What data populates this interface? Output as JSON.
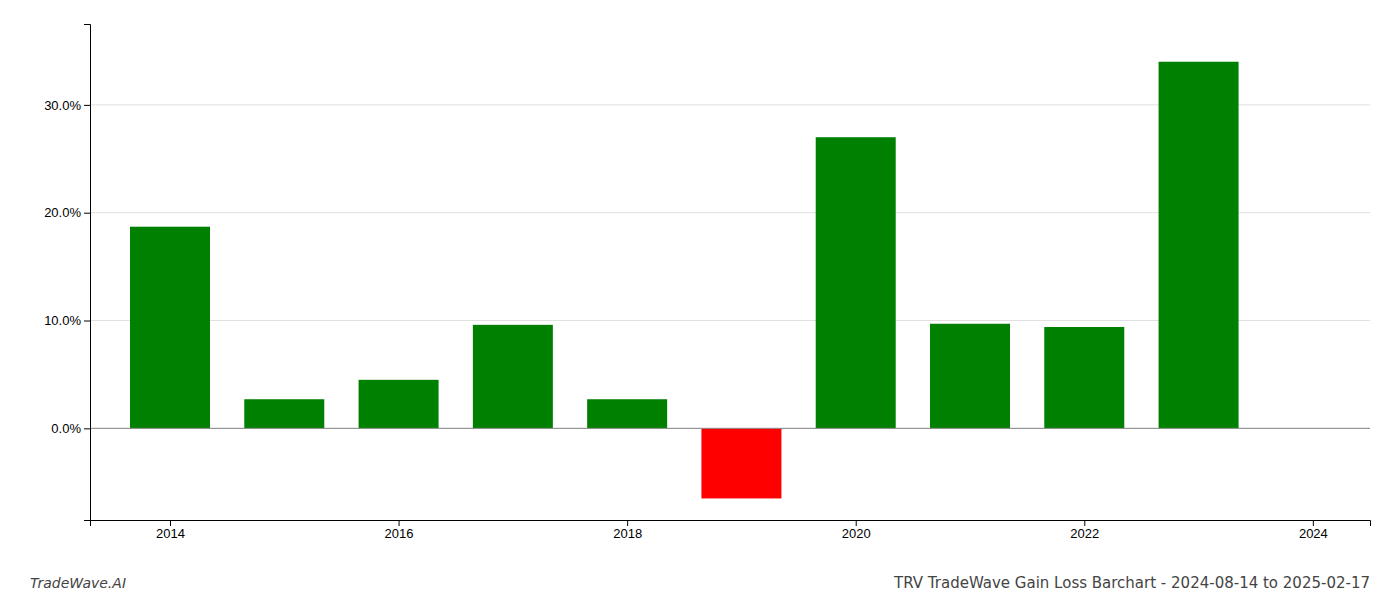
{
  "chart_data": {
    "type": "bar",
    "title": "TRV TradeWave Gain Loss Barchart - 2024-08-14 to 2025-02-17",
    "annotations": [
      "TradeWave.AI"
    ],
    "x": [
      2014,
      2015,
      2016,
      2017,
      2018,
      2019,
      2020,
      2021,
      2022,
      2023
    ],
    "values": [
      0.187,
      0.027,
      0.045,
      0.096,
      0.027,
      -0.065,
      0.27,
      0.097,
      0.094,
      0.34
    ],
    "colors": [
      "#008000",
      "#008000",
      "#008000",
      "#008000",
      "#008000",
      "#ff0000",
      "#008000",
      "#008000",
      "#008000",
      "#008000"
    ],
    "xlim": [
      2013.3,
      2024.5
    ],
    "xticks": [
      2014,
      2016,
      2018,
      2020,
      2022,
      2024
    ],
    "ylim": [
      -0.085,
      0.375
    ],
    "yticks": [
      {
        "value": 0.0,
        "label": "0.0%"
      },
      {
        "value": 0.1,
        "label": "10.0%"
      },
      {
        "value": 0.2,
        "label": "20.0%"
      },
      {
        "value": 0.3,
        "label": "30.0%"
      }
    ],
    "grid": true
  }
}
